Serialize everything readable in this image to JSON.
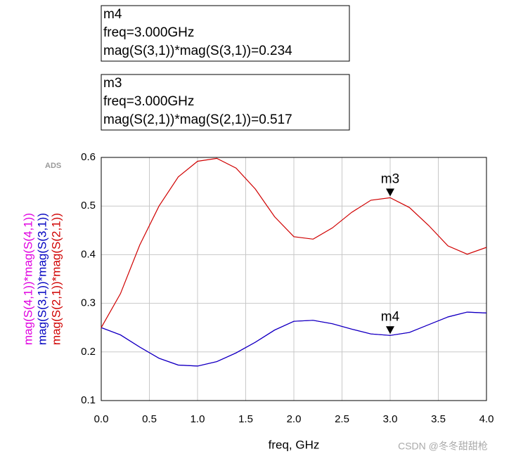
{
  "chart_data": {
    "type": "line",
    "tag": "ADS",
    "xlabel": "freq, GHz",
    "watermark": "CSDN @冬冬甜甜枪",
    "x": [
      0,
      0.2,
      0.4,
      0.6,
      0.8,
      1.0,
      1.2,
      1.4,
      1.6,
      1.8,
      2.0,
      2.2,
      2.4,
      2.6,
      2.8,
      3.0,
      3.2,
      3.4,
      3.6,
      3.8,
      4.0
    ],
    "series": [
      {
        "name": "mag(S(4,1))*mag(S(4,1))",
        "color": "#e000e0",
        "values": [
          0.25,
          0.235,
          0.21,
          0.187,
          0.173,
          0.171,
          0.18,
          0.198,
          0.22,
          0.245,
          0.263,
          0.265,
          0.258,
          0.247,
          0.237,
          0.234,
          0.24,
          0.256,
          0.272,
          0.282,
          0.28
        ]
      },
      {
        "name": "mag(S(3,1))*mag(S(3,1))",
        "color": "#0000c0",
        "values": [
          0.25,
          0.235,
          0.21,
          0.187,
          0.173,
          0.171,
          0.18,
          0.198,
          0.22,
          0.245,
          0.263,
          0.265,
          0.258,
          0.247,
          0.237,
          0.234,
          0.24,
          0.256,
          0.272,
          0.282,
          0.28
        ]
      },
      {
        "name": "mag(S(2,1))*mag(S(2,1))",
        "color": "#d00000",
        "values": [
          0.25,
          0.32,
          0.42,
          0.5,
          0.56,
          0.592,
          0.598,
          0.578,
          0.535,
          0.478,
          0.437,
          0.432,
          0.455,
          0.487,
          0.512,
          0.517,
          0.497,
          0.46,
          0.418,
          0.401,
          0.415
        ]
      }
    ],
    "xlim": [
      0,
      4
    ],
    "ylim": [
      0.1,
      0.6
    ],
    "xticks": [
      {
        "value": 0,
        "label": "0.0"
      },
      0.5,
      {
        "value": 1,
        "label": "1.0"
      },
      1.5,
      {
        "value": 2,
        "label": "2.0"
      },
      2.5,
      {
        "value": 3,
        "label": "3.0"
      },
      3.5,
      {
        "value": 4,
        "label": "4.0"
      }
    ],
    "yticks": [
      0.1,
      0.2,
      0.3,
      0.4,
      0.5,
      0.6
    ],
    "grid": true,
    "markers": [
      {
        "name": "m4",
        "x": 3,
        "value": 0.234,
        "lines": [
          "m4",
          "freq=3.000GHz",
          "mag(S(3,1))*mag(S(3,1))=0.234"
        ]
      },
      {
        "name": "m3",
        "x": 3,
        "value": 0.517,
        "lines": [
          "m3",
          "freq=3.000GHz",
          "mag(S(2,1))*mag(S(2,1))=0.517"
        ]
      }
    ]
  }
}
